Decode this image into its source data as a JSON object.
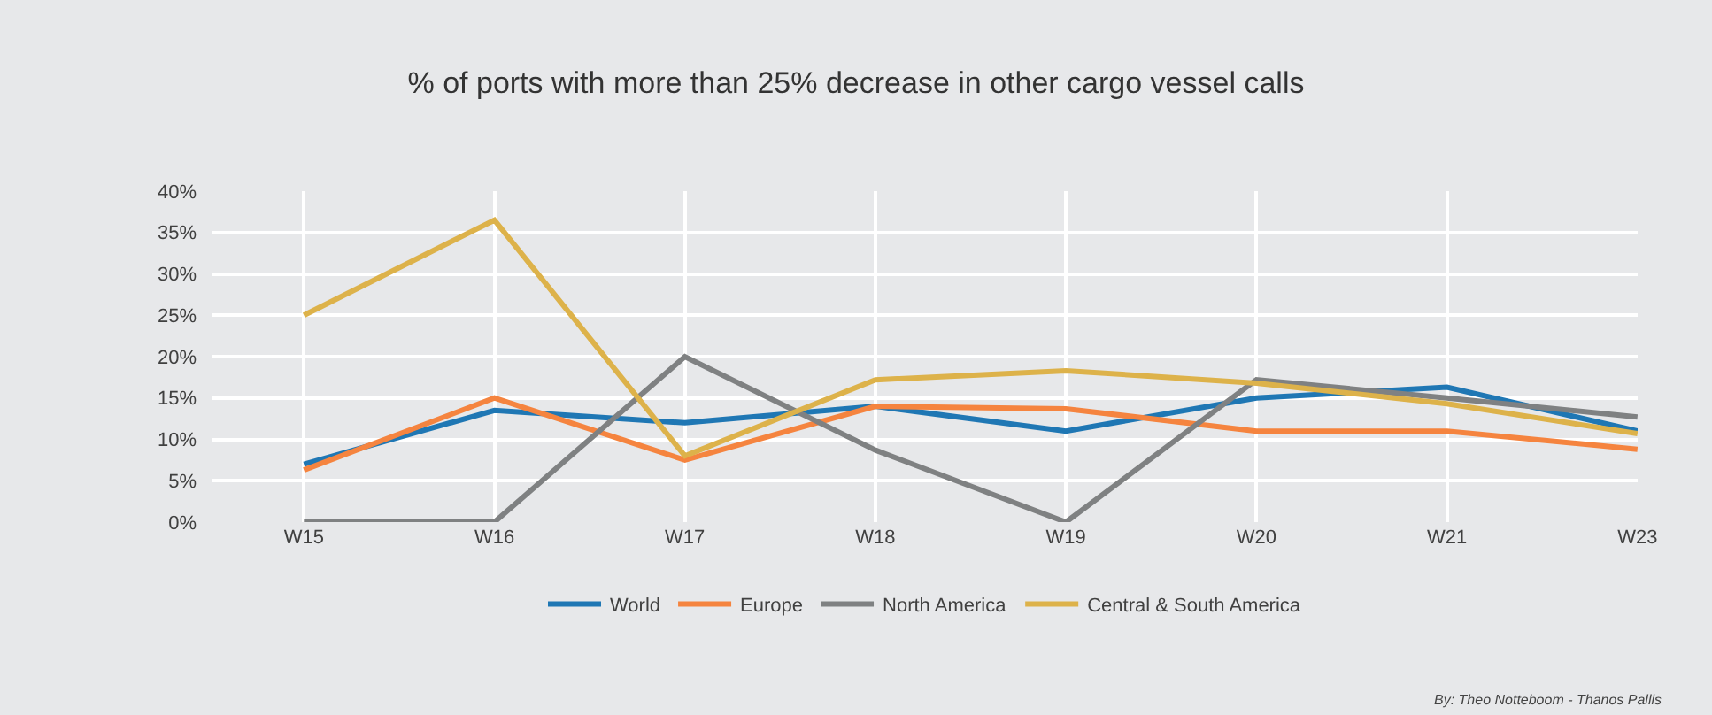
{
  "chart_data": {
    "type": "line",
    "title": "% of ports with more than 25% decrease in other cargo vessel calls",
    "categories": [
      "W15",
      "W16",
      "W17",
      "W18",
      "W19",
      "W20",
      "W21",
      "W23"
    ],
    "series": [
      {
        "name": "World",
        "color": "#1f77b4",
        "values": [
          7,
          13.5,
          12,
          14,
          11,
          15,
          16.3,
          11
        ]
      },
      {
        "name": "Europe",
        "color": "#f5843f",
        "values": [
          6.3,
          15,
          7.5,
          14,
          13.7,
          11,
          11,
          8.8
        ]
      },
      {
        "name": "North America",
        "color": "#7f8182",
        "values": [
          0,
          0,
          20,
          8.7,
          0,
          17.2,
          15,
          12.7
        ]
      },
      {
        "name": "Central & South America",
        "color": "#ddb24a",
        "values": [
          25,
          36.5,
          8,
          17.2,
          18.3,
          16.8,
          14.3,
          10.7
        ]
      }
    ],
    "ylim": [
      0,
      40
    ],
    "yticks": [
      {
        "value": 0,
        "label": "0%"
      },
      {
        "value": 5,
        "label": "5%"
      },
      {
        "value": 10,
        "label": "10%"
      },
      {
        "value": 15,
        "label": "15%"
      },
      {
        "value": 20,
        "label": "20%"
      },
      {
        "value": 25,
        "label": "25%"
      },
      {
        "value": 30,
        "label": "30%"
      },
      {
        "value": 35,
        "label": "35%"
      },
      {
        "value": 40,
        "label": "40%"
      }
    ],
    "grid": true,
    "legend": "bottom",
    "marker": "none",
    "line_style": "solid",
    "annotations": [
      "By: Theo Notteboom - Thanos Pallis"
    ]
  }
}
